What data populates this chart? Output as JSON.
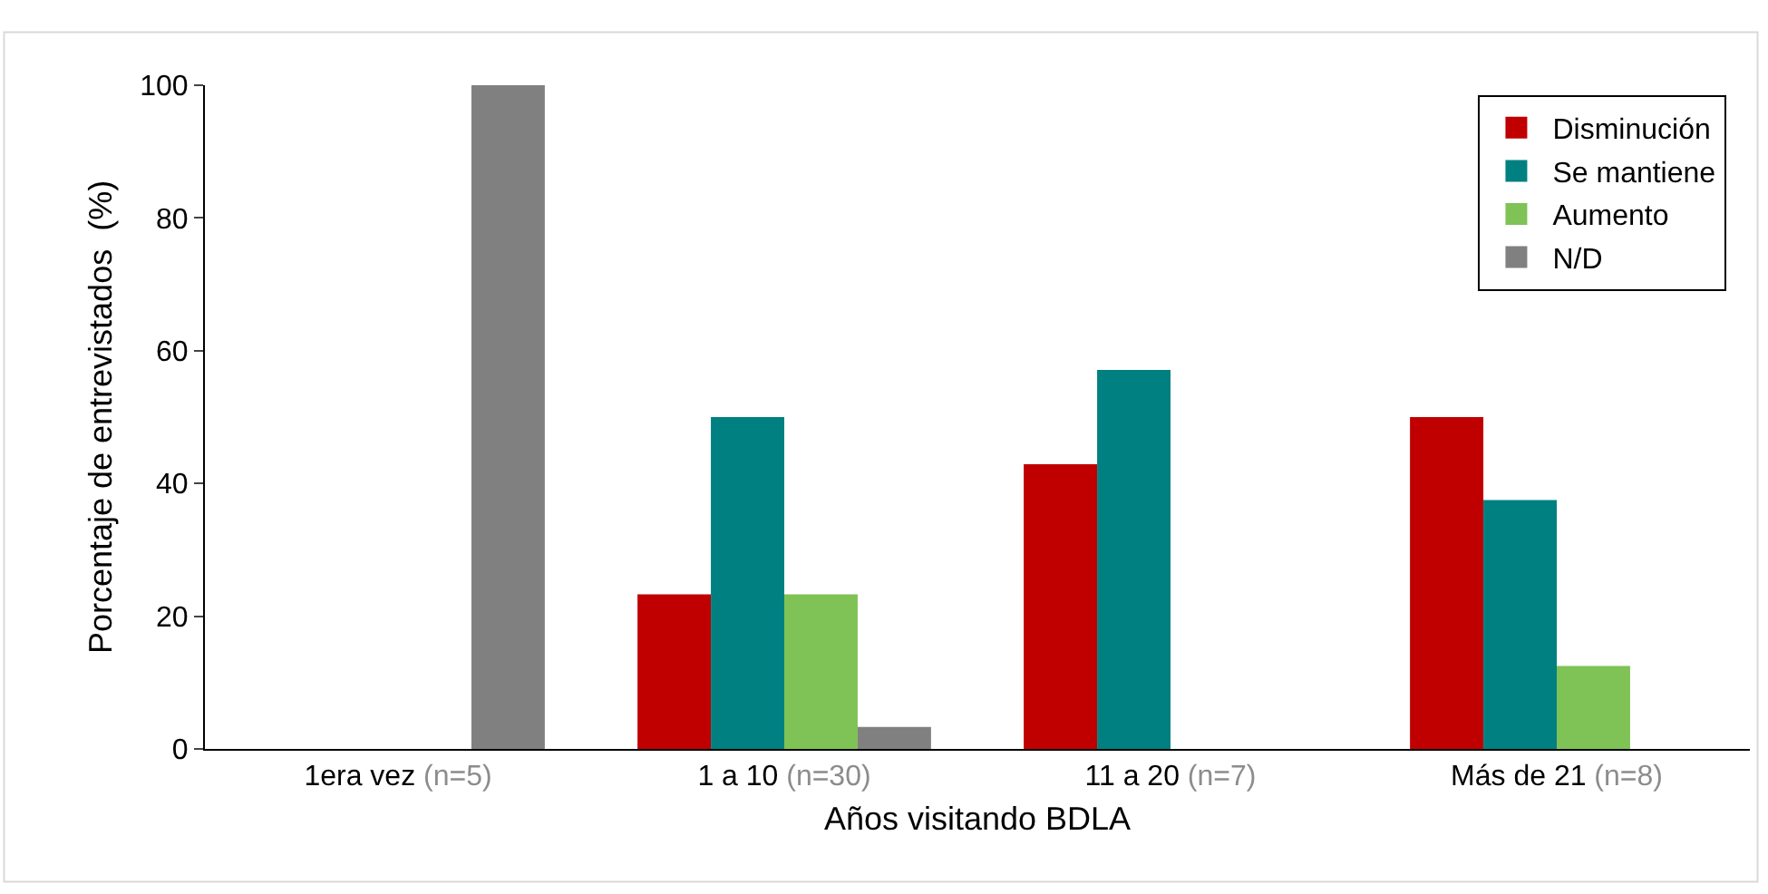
{
  "chart_data": {
    "type": "bar",
    "xlabel": "Años visitando BDLA",
    "ylabel": "Porcentaje de entrevistados  (%)",
    "categories": [
      "1era vez (n=5)",
      "1 a 10 (n=30)",
      "11 a 20 (n=7)",
      "Más de 21 (n=8)"
    ],
    "series": [
      {
        "name": "Disminución",
        "color": "#c00000",
        "values": [
          null,
          23.3,
          42.9,
          50
        ]
      },
      {
        "name": "Se mantiene",
        "color": "#008080",
        "values": [
          null,
          50,
          57.1,
          37.5
        ]
      },
      {
        "name": "Aumento",
        "color": "#7fc256",
        "values": [
          null,
          23.3,
          null,
          12.5
        ]
      },
      {
        "name": "N/D",
        "color": "#808080",
        "values": [
          100,
          3.3,
          null,
          null
        ]
      }
    ],
    "ylim": [
      0,
      100
    ],
    "yticks": [
      0,
      20,
      40,
      60,
      80,
      100
    ],
    "legend": "top right"
  }
}
